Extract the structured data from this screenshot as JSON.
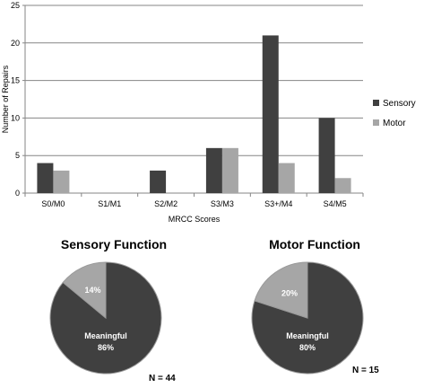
{
  "chart_data": [
    {
      "type": "bar",
      "categories": [
        "S0/M0",
        "S1/M1",
        "S2/M2",
        "S3/M3",
        "S3+/M4",
        "S4/M5"
      ],
      "series": [
        {
          "name": "Sensory",
          "values": [
            4,
            0,
            3,
            6,
            21,
            10
          ],
          "color": "#404040"
        },
        {
          "name": "Motor",
          "values": [
            3,
            0,
            0,
            6,
            4,
            2
          ],
          "color": "#a6a6a6"
        }
      ],
      "xlabel": "MRCC Scores",
      "ylabel": "Number of Repairs",
      "ylim": [
        0,
        25
      ],
      "yticks": [
        0,
        5,
        10,
        15,
        20,
        25
      ],
      "grid": true,
      "legend": "right"
    },
    {
      "type": "pie",
      "title": "Sensory Function",
      "slices": [
        {
          "label": "Meaningful",
          "value": 86,
          "text": "86%",
          "color": "#404040"
        },
        {
          "label": "",
          "value": 14,
          "text": "14%",
          "color": "#a6a6a6"
        }
      ],
      "note": "N = 44"
    },
    {
      "type": "pie",
      "title": "Motor Function",
      "slices": [
        {
          "label": "Meaningful",
          "value": 80,
          "text": "80%",
          "color": "#404040"
        },
        {
          "label": "",
          "value": 20,
          "text": "20%",
          "color": "#a6a6a6"
        }
      ],
      "note": "N = 15"
    }
  ]
}
